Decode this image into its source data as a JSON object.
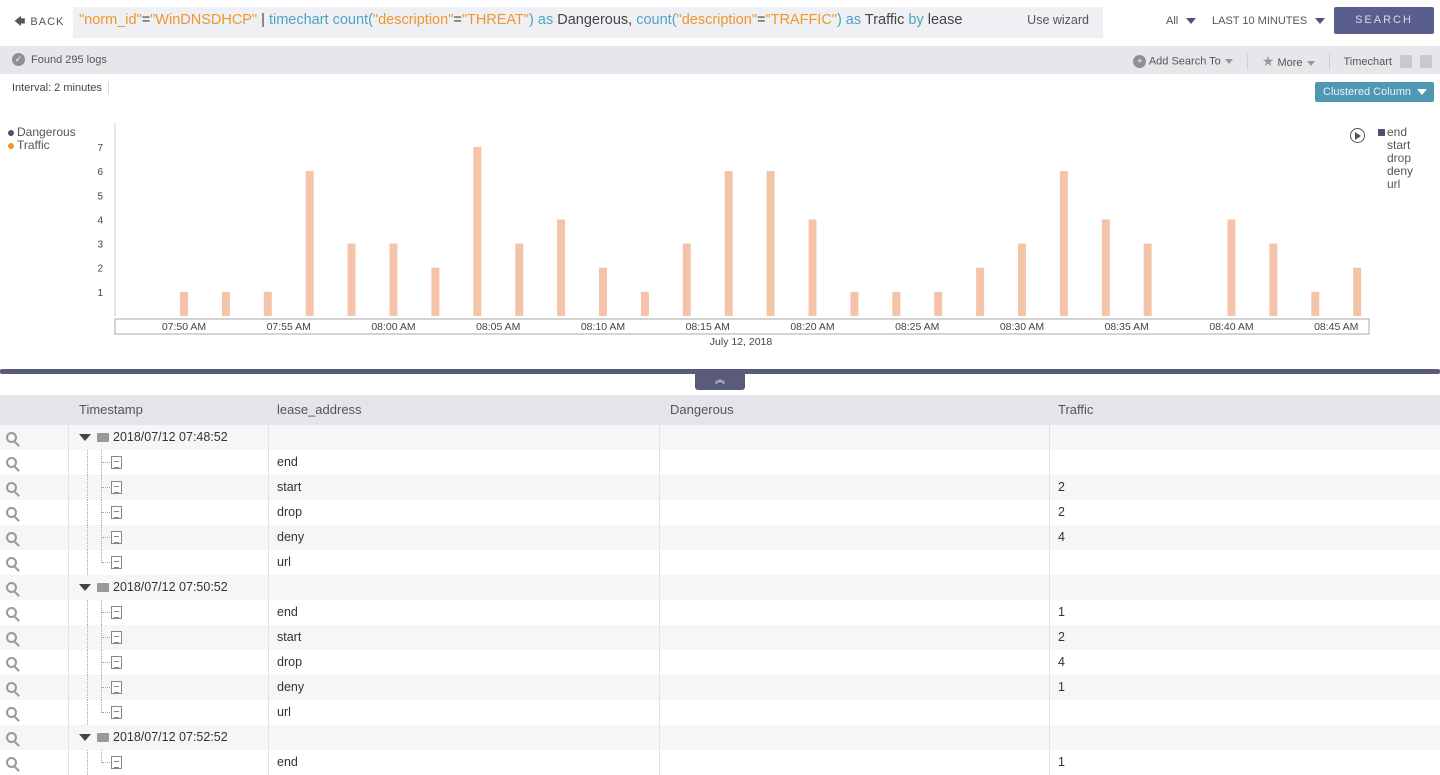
{
  "topbar": {
    "back_label": "BACK",
    "query_tokens": [
      {
        "t": "\"norm_id\"",
        "c": "str"
      },
      {
        "t": "=",
        "c": "plain"
      },
      {
        "t": "\"WinDNSDHCP\"",
        "c": "str"
      },
      {
        "t": " | ",
        "c": "plain"
      },
      {
        "t": "timechart count(",
        "c": "kw"
      },
      {
        "t": "\"description\"",
        "c": "str"
      },
      {
        "t": "=",
        "c": "plain"
      },
      {
        "t": "\"THREAT\"",
        "c": "str"
      },
      {
        "t": ") as ",
        "c": "kw"
      },
      {
        "t": "Dangerous, ",
        "c": "plain"
      },
      {
        "t": "count(",
        "c": "kw"
      },
      {
        "t": "\"description\"",
        "c": "str"
      },
      {
        "t": "=",
        "c": "plain"
      },
      {
        "t": "\"TRAFFIC\"",
        "c": "str"
      },
      {
        "t": ") as ",
        "c": "kw"
      },
      {
        "t": "Traffic ",
        "c": "plain"
      },
      {
        "t": "by ",
        "c": "kw"
      },
      {
        "t": "lease",
        "c": "plain"
      }
    ],
    "wizard_label": "Use wizard",
    "repo_select": "All",
    "time_range": "LAST 10 MINUTES",
    "search_label": "SEARCH"
  },
  "toolbar": {
    "found_text": "Found 295 logs",
    "add_search_label": "Add Search To",
    "more_label": "More",
    "view_label": "Timechart"
  },
  "chart_panel": {
    "interval_text": "Interval: 2 minutes",
    "chart_type": "Clustered Column",
    "series_legend": [
      "Dangerous",
      "Traffic"
    ],
    "group_legend": [
      "end",
      "start",
      "drop",
      "deny",
      "url"
    ]
  },
  "colors": {
    "dangerous": "#4d5073",
    "traffic": "#f0962e",
    "bar": "#f5c4a8",
    "accent": "#5a5e8e",
    "chart_type_button": "#4f97b3"
  },
  "chart_data": {
    "type": "bar",
    "xlabel": "July 12, 2018",
    "ylim": [
      0,
      8
    ],
    "y_ticks": [
      1,
      2,
      3,
      4,
      5,
      6,
      7
    ],
    "x_ticks": [
      "07:50 AM",
      "07:55 AM",
      "08:00 AM",
      "08:05 AM",
      "08:10 AM",
      "08:15 AM",
      "08:20 AM",
      "08:25 AM",
      "08:30 AM",
      "08:35 AM",
      "08:40 AM",
      "08:45 AM"
    ],
    "x": [
      "07:50",
      "07:52",
      "07:54",
      "07:56",
      "07:58",
      "08:00",
      "08:02",
      "08:04",
      "08:06",
      "08:08",
      "08:10",
      "08:12",
      "08:14",
      "08:16",
      "08:18",
      "08:20",
      "08:22",
      "08:24",
      "08:26",
      "08:28",
      "08:30",
      "08:32",
      "08:34",
      "08:36",
      "08:38",
      "08:40",
      "08:42",
      "08:44",
      "08:46"
    ],
    "values": [
      1,
      1,
      1,
      6,
      3,
      3,
      2,
      7,
      3,
      4,
      2,
      1,
      3,
      6,
      6,
      4,
      1,
      1,
      1,
      2,
      3,
      6,
      4,
      3,
      0,
      4,
      3,
      1,
      2
    ],
    "grid": false
  },
  "table": {
    "columns": [
      "Timestamp",
      "lease_address",
      "Dangerous",
      "Traffic"
    ],
    "groups": [
      {
        "timestamp": "2018/07/12 07:48:52",
        "rows": [
          {
            "lease": "end",
            "dangerous": "",
            "traffic": ""
          },
          {
            "lease": "start",
            "dangerous": "",
            "traffic": "2"
          },
          {
            "lease": "drop",
            "dangerous": "",
            "traffic": "2"
          },
          {
            "lease": "deny",
            "dangerous": "",
            "traffic": "4"
          },
          {
            "lease": "url",
            "dangerous": "",
            "traffic": ""
          }
        ]
      },
      {
        "timestamp": "2018/07/12 07:50:52",
        "rows": [
          {
            "lease": "end",
            "dangerous": "",
            "traffic": "1"
          },
          {
            "lease": "start",
            "dangerous": "",
            "traffic": "2"
          },
          {
            "lease": "drop",
            "dangerous": "",
            "traffic": "4"
          },
          {
            "lease": "deny",
            "dangerous": "",
            "traffic": "1"
          },
          {
            "lease": "url",
            "dangerous": "",
            "traffic": ""
          }
        ]
      },
      {
        "timestamp": "2018/07/12 07:52:52",
        "rows": [
          {
            "lease": "end",
            "dangerous": "",
            "traffic": "1"
          }
        ]
      }
    ]
  }
}
